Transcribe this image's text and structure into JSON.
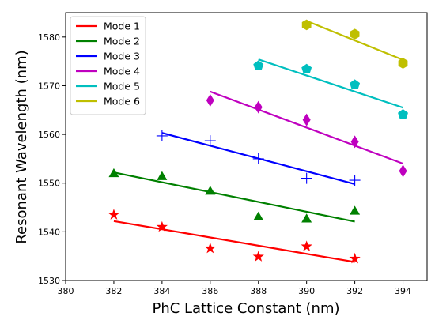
{
  "chart_data": {
    "type": "scatter",
    "xlabel": "PhC Lattice Constant (nm)",
    "ylabel": "Resonant Wavelength (nm)",
    "xlim": [
      380,
      395
    ],
    "ylim": [
      1530,
      1585
    ],
    "xticks": [
      380,
      382,
      384,
      386,
      388,
      390,
      392,
      394
    ],
    "yticks": [
      1530,
      1540,
      1550,
      1560,
      1570,
      1580
    ],
    "legend_position": "top-left",
    "grid": false,
    "series": [
      {
        "name": "Mode 1",
        "color": "#ff0000",
        "marker": "star",
        "x": [
          382,
          384,
          386,
          388,
          390,
          392
        ],
        "y": [
          1543.5,
          1541.0,
          1536.6,
          1534.9,
          1537.0,
          1534.5
        ],
        "fit": {
          "x": [
            382,
            392
          ],
          "y": [
            1542.2,
            1533.8
          ]
        }
      },
      {
        "name": "Mode 2",
        "color": "#008000",
        "marker": "triangle",
        "x": [
          382,
          384,
          386,
          388,
          390,
          392
        ],
        "y": [
          1552.0,
          1551.4,
          1548.4,
          1543.1,
          1542.7,
          1544.3
        ],
        "fit": {
          "x": [
            382,
            392
          ],
          "y": [
            1552.2,
            1542.1
          ]
        }
      },
      {
        "name": "Mode 3",
        "color": "#0000ff",
        "marker": "plus",
        "x": [
          384,
          386,
          388,
          390,
          392
        ],
        "y": [
          1559.7,
          1558.7,
          1555.0,
          1551.0,
          1550.6
        ],
        "fit": {
          "x": [
            384,
            392
          ],
          "y": [
            1560.3,
            1549.8
          ]
        }
      },
      {
        "name": "Mode 4",
        "color": "#bf00bf",
        "marker": "diamond",
        "x": [
          386,
          388,
          390,
          392,
          394
        ],
        "y": [
          1567.0,
          1565.6,
          1563.0,
          1558.5,
          1552.5
        ],
        "fit": {
          "x": [
            386,
            394
          ],
          "y": [
            1568.8,
            1554.0
          ]
        }
      },
      {
        "name": "Mode 5",
        "color": "#00bfbf",
        "marker": "pentagon",
        "x": [
          388,
          390,
          392,
          394
        ],
        "y": [
          1574.1,
          1573.4,
          1570.2,
          1564.1
        ],
        "fit": {
          "x": [
            388,
            394
          ],
          "y": [
            1575.4,
            1565.5
          ]
        }
      },
      {
        "name": "Mode 6",
        "color": "#bfbf00",
        "marker": "hexagon",
        "x": [
          390,
          392,
          394
        ],
        "y": [
          1582.5,
          1580.6,
          1574.6
        ],
        "fit": {
          "x": [
            390,
            394
          ],
          "y": [
            1583.3,
            1575.3
          ]
        }
      }
    ]
  }
}
